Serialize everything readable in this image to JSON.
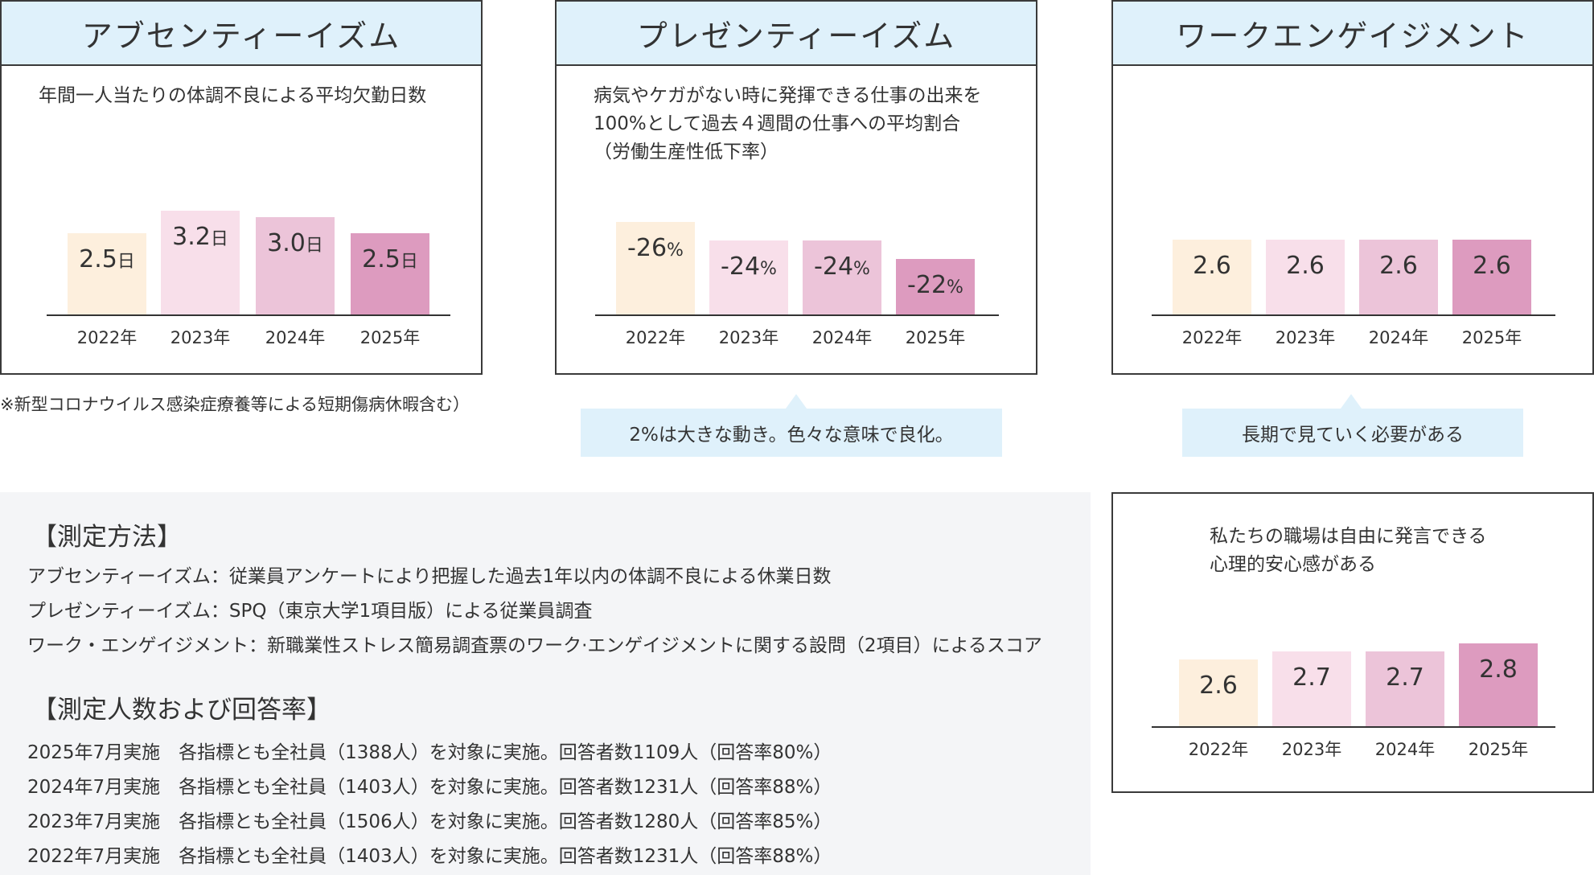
{
  "panels": {
    "absenteeism": {
      "title": "アブセンティーイズム",
      "description": "年間一人当たりの体調不良による平均欠勤日数"
    },
    "presenteeism": {
      "title": "プレゼンティーイズム",
      "description": "病気やケガがない時に発揮できる仕事の出来を\n100%として過去４週間の仕事への平均割合\n（労働生産性低下率）"
    },
    "engagement": {
      "title": "ワークエンゲイジメント",
      "description": ""
    },
    "safety": {
      "description": "私たちの職場は自由に発言できる\n心理的安心感がある"
    }
  },
  "colors": {
    "bar_2022": "#fdefdd",
    "bar_2023": "#f8dfea",
    "bar_2024": "#ecc4d9",
    "bar_2025": "#dd9bbf",
    "header_bg": "#dff1fb",
    "callout_bg": "#dff1fb",
    "gray_bg": "#f4f5f7"
  },
  "chart_data": [
    {
      "id": "absenteeism",
      "type": "bar",
      "categories": [
        "2022年",
        "2023年",
        "2024年",
        "2025年"
      ],
      "values": [
        2.5,
        3.2,
        3.0,
        2.5
      ],
      "labels": [
        {
          "num": "2.5",
          "unit": "日"
        },
        {
          "num": "3.2",
          "unit": "日"
        },
        {
          "num": "3.0",
          "unit": "日"
        },
        {
          "num": "2.5",
          "unit": "日"
        }
      ],
      "ylim": [
        0,
        3.6
      ]
    },
    {
      "id": "presenteeism",
      "type": "bar",
      "categories": [
        "2022年",
        "2023年",
        "2024年",
        "2025年"
      ],
      "values": [
        -26,
        -24,
        -24,
        -22
      ],
      "labels": [
        {
          "num": "-26",
          "unit": "%"
        },
        {
          "num": "-24",
          "unit": "%"
        },
        {
          "num": "-24",
          "unit": "%"
        },
        {
          "num": "-22",
          "unit": "%"
        }
      ]
    },
    {
      "id": "engagement",
      "type": "bar",
      "categories": [
        "2022年",
        "2023年",
        "2024年",
        "2025年"
      ],
      "values": [
        2.6,
        2.6,
        2.6,
        2.6
      ],
      "labels": [
        {
          "num": "2.6",
          "unit": ""
        },
        {
          "num": "2.6",
          "unit": ""
        },
        {
          "num": "2.6",
          "unit": ""
        },
        {
          "num": "2.6",
          "unit": ""
        }
      ]
    },
    {
      "id": "safety",
      "type": "bar",
      "categories": [
        "2022年",
        "2023年",
        "2024年",
        "2025年"
      ],
      "values": [
        2.6,
        2.7,
        2.7,
        2.8
      ],
      "labels": [
        {
          "num": "2.6",
          "unit": ""
        },
        {
          "num": "2.7",
          "unit": ""
        },
        {
          "num": "2.7",
          "unit": ""
        },
        {
          "num": "2.8",
          "unit": ""
        }
      ]
    }
  ],
  "notes": {
    "absenteeism_footnote": "※新型コロナウイルス感染症療養等による短期傷病休暇含む）",
    "presenteeism_callout": "2%は大きな動き。色々な意味で良化。",
    "engagement_callout": "長期で見ていく必要がある"
  },
  "method": {
    "title": "【測定方法】",
    "lines": [
      "アブセンティーイズム：従業員アンケートにより把握した過去1年以内の体調不良による休業日数",
      "プレゼンティーイズム：SPQ（東京大学1項目版）による従業員調査",
      "ワーク・エンゲイジメント：新職業性ストレス簡易調査票のワーク·エンゲイジメントに関する設問（2項目）によるスコア"
    ]
  },
  "respondents": {
    "title": "【測定人数および回答率】",
    "lines": [
      "2025年7月実施　各指標とも全社員（1388人）を対象に実施。回答者数1109人（回答率80%）",
      "2024年7月実施　各指標とも全社員（1403人）を対象に実施。回答者数1231人（回答率88%）",
      "2023年7月実施　各指標とも全社員（1506人）を対象に実施。回答者数1280人（回答率85%）",
      "2022年7月実施　各指標とも全社員（1403人）を対象に実施。回答者数1231人（回答率88%）"
    ]
  }
}
